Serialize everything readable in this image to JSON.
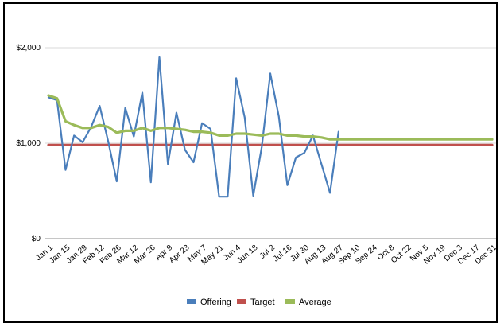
{
  "chart_data": {
    "type": "line",
    "title": "",
    "xlabel": "",
    "ylabel": "",
    "ylim": [
      0,
      2000
    ],
    "yticks": [
      0,
      1000,
      2000
    ],
    "ytick_labels": [
      "$0",
      "$1,000",
      "$2,000"
    ],
    "grid": "horizontal",
    "legend_position": "bottom",
    "x_tick_labels": [
      "Jan 1",
      "Jan 15",
      "Jan 29",
      "Feb 12",
      "Feb 26",
      "Mar 12",
      "Mar 26",
      "Apr 9",
      "Apr 23",
      "May 7",
      "May 21",
      "Jun 4",
      "Jun 18",
      "Jul 2",
      "Jul 16",
      "Jul 30",
      "Aug 13",
      "Aug 27",
      "Sep 10",
      "Sep 24",
      "Oct 8",
      "Oct 22",
      "Nov 5",
      "Nov 19",
      "Dec 3",
      "Dec 17",
      "Dec 31"
    ],
    "x_count": 53,
    "series": [
      {
        "name": "Offering",
        "color": "#4a7ebb",
        "values": [
          1480,
          1450,
          720,
          1080,
          1010,
          1170,
          1390,
          1020,
          600,
          1370,
          1070,
          1530,
          590,
          1900,
          780,
          1320,
          930,
          800,
          1210,
          1150,
          440,
          440,
          1680,
          1270,
          450,
          960,
          1730,
          1280,
          560,
          850,
          900,
          1080,
          780,
          480,
          1120
        ]
      },
      {
        "name": "Target",
        "color": "#c0504d",
        "values": [
          980,
          980,
          980,
          980,
          980,
          980,
          980,
          980,
          980,
          980,
          980,
          980,
          980,
          980,
          980,
          980,
          980,
          980,
          980,
          980,
          980,
          980,
          980,
          980,
          980,
          980,
          980,
          980,
          980,
          980,
          980,
          980,
          980,
          980,
          980,
          980,
          980,
          980,
          980,
          980,
          980,
          980,
          980,
          980,
          980,
          980,
          980,
          980,
          980,
          980,
          980,
          980,
          980
        ]
      },
      {
        "name": "Average",
        "color": "#9bbb59",
        "values": [
          1500,
          1470,
          1230,
          1190,
          1160,
          1160,
          1190,
          1170,
          1110,
          1130,
          1130,
          1160,
          1130,
          1160,
          1160,
          1150,
          1140,
          1120,
          1120,
          1110,
          1080,
          1080,
          1100,
          1100,
          1090,
          1080,
          1100,
          1100,
          1080,
          1080,
          1070,
          1070,
          1060,
          1040,
          1040,
          1040,
          1040,
          1040,
          1040,
          1040,
          1040,
          1040,
          1040,
          1040,
          1040,
          1040,
          1040,
          1040,
          1040,
          1040,
          1040,
          1040,
          1040
        ]
      }
    ]
  }
}
